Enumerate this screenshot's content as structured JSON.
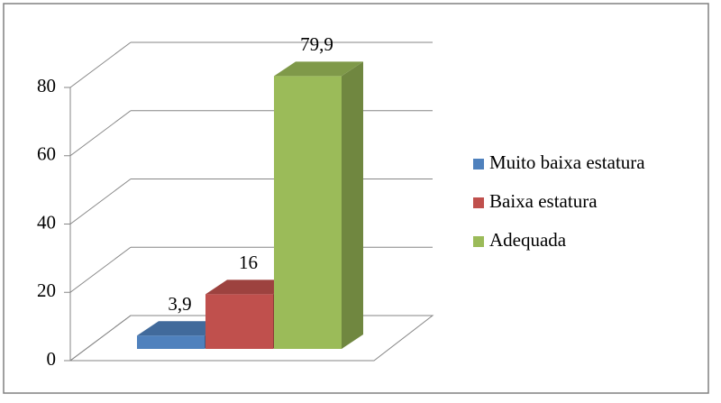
{
  "chart_data": {
    "type": "bar3d",
    "categories": [
      null
    ],
    "series": [
      {
        "name": "Muito baixa estatura",
        "color": "#4f81bd",
        "values": [
          3.9
        ],
        "value_labels": [
          "3,9"
        ]
      },
      {
        "name": "Baixa estatura",
        "color": "#c0504d",
        "values": [
          16
        ]
      },
      {
        "name": "Adequada",
        "color": "#9bbb59",
        "values": [
          79.9
        ],
        "value_labels": [
          "79,9"
        ]
      }
    ],
    "ylim": [
      0,
      80
    ],
    "yticks": [
      0,
      20,
      40,
      60,
      80
    ],
    "grid": true,
    "legend": "right"
  }
}
